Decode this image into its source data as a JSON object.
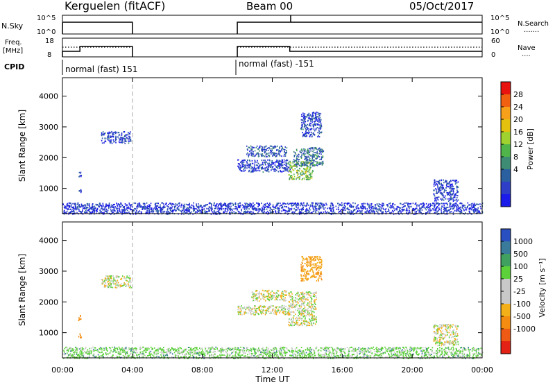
{
  "header": {
    "radar": "Kerguelen (fitACF)",
    "beam": "Beam 00",
    "date": "05/Oct/2017"
  },
  "panels": {
    "sky": {
      "left_label": "N.Sky",
      "left_ticks": [
        "10^5",
        "10^0"
      ],
      "right_ticks": [
        "10^5",
        "10^0"
      ],
      "right_label": "N.Search",
      "right_legend": "......."
    },
    "freq": {
      "left_label_1": "Freq.",
      "left_label_2": "[MHz]",
      "left_ticks": [
        "18",
        "8"
      ],
      "right_ticks": [
        "60",
        "0"
      ],
      "right_label": "Nave",
      "right_legend": "...."
    },
    "cpid": {
      "label": "CPID",
      "segments": [
        "normal (fast) 151",
        "normal (fast) -151"
      ]
    }
  },
  "power_colorbar": {
    "label": "Power [dB]",
    "ticks": [
      "28",
      "24",
      "20",
      "16",
      "12",
      "8",
      "4"
    ],
    "colors": [
      "#e8130f",
      "#f06010",
      "#f7a11a",
      "#e3c10e",
      "#9fd22e",
      "#4fb54b",
      "#3e8c73",
      "#2a5fa0",
      "#2e3ec7",
      "#1b1bea"
    ]
  },
  "velocity_colorbar": {
    "label": "Velocity [m s⁻¹]",
    "ticks": [
      "1000",
      "500",
      "100",
      "25",
      "-25",
      "-100",
      "-500",
      "-1000"
    ],
    "colors": [
      "#2a4fc0",
      "#3a7a9a",
      "#40a060",
      "#5cd13a",
      "#c8c8c8",
      "#c8c8c8",
      "#f4b018",
      "#f38c10",
      "#ee5a14",
      "#e32114"
    ]
  },
  "axes": {
    "ylabel": "Slant Range [km]",
    "yticks": [
      "4000",
      "3000",
      "2000",
      "1000"
    ],
    "xticks": [
      "00:00",
      "04:00",
      "08:00",
      "12:00",
      "16:00",
      "20:00",
      "00:00"
    ],
    "xlabel": "Time UT"
  },
  "chart_data": [
    {
      "type": "heatmap",
      "title": "Power",
      "xlabel": "",
      "ylabel": "Slant Range [km]",
      "x_unit": "hours UT",
      "xlim": [
        0,
        24
      ],
      "ylim": [
        180,
        4600
      ],
      "scatter_regions": [
        {
          "t0": 0.9,
          "t1": 1.05,
          "r0": 1380,
          "r1": 1580,
          "power": 6
        },
        {
          "t0": 0.9,
          "t1": 1.05,
          "r0": 850,
          "r1": 1000,
          "power": 6
        },
        {
          "t0": 2.2,
          "t1": 3.9,
          "r0": 2480,
          "r1": 2870,
          "power": 6
        },
        {
          "t0": 10.0,
          "t1": 13.0,
          "r0": 1550,
          "r1": 1950,
          "power": 6
        },
        {
          "t0": 10.5,
          "t1": 12.8,
          "r0": 2050,
          "r1": 2400,
          "power": 8
        },
        {
          "t0": 12.9,
          "t1": 14.3,
          "r0": 1300,
          "r1": 1900,
          "power": 16
        },
        {
          "t0": 13.2,
          "t1": 14.9,
          "r0": 1750,
          "r1": 2350,
          "power": 10
        },
        {
          "t0": 13.6,
          "t1": 14.8,
          "r0": 2700,
          "r1": 3500,
          "power": 6
        },
        {
          "t0": 21.2,
          "t1": 22.6,
          "r0": 600,
          "r1": 1300,
          "power": 6
        },
        {
          "t0": 0.0,
          "t1": 24.0,
          "r0": 180,
          "r1": 550,
          "power": 5
        }
      ]
    },
    {
      "type": "heatmap",
      "title": "Velocity",
      "xlabel": "Time UT",
      "ylabel": "Slant Range [km]",
      "x_unit": "hours UT",
      "xlim": [
        0,
        24
      ],
      "ylim": [
        180,
        4600
      ],
      "scatter_regions": [
        {
          "t0": 0.9,
          "t1": 1.05,
          "r0": 1380,
          "r1": 1580,
          "velocity": -200
        },
        {
          "t0": 0.9,
          "t1": 1.05,
          "r0": 850,
          "r1": 1000,
          "velocity": -200
        },
        {
          "t0": 2.2,
          "t1": 3.9,
          "r0": 2480,
          "r1": 2870,
          "velocity": 0
        },
        {
          "t0": 10.0,
          "t1": 13.0,
          "r0": 1600,
          "r1": 1900,
          "velocity": 0
        },
        {
          "t0": 10.8,
          "t1": 12.8,
          "r0": 2050,
          "r1": 2400,
          "velocity": 0
        },
        {
          "t0": 12.9,
          "t1": 14.5,
          "r0": 1250,
          "r1": 2350,
          "velocity": 0
        },
        {
          "t0": 13.6,
          "t1": 14.8,
          "r0": 2700,
          "r1": 3500,
          "velocity": -100
        },
        {
          "t0": 21.2,
          "t1": 22.6,
          "r0": 600,
          "r1": 1300,
          "velocity": 0
        },
        {
          "t0": 0.0,
          "t1": 24.0,
          "r0": 180,
          "r1": 550,
          "velocity": 50
        }
      ]
    }
  ]
}
